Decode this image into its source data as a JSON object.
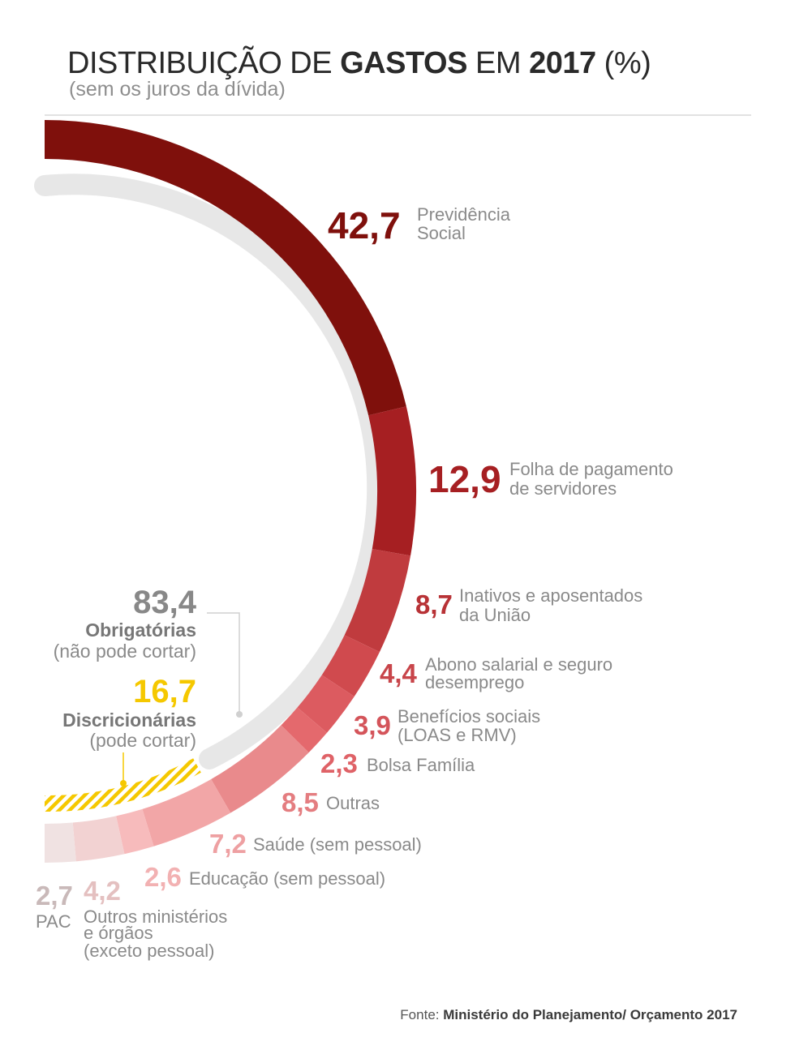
{
  "title": {
    "part1": "DISTRIBUIÇÃO DE ",
    "part2": "GASTOS",
    "part3": " EM ",
    "part4": "2017",
    "part5": " (%)",
    "subtitle": "(sem os juros da dívida)"
  },
  "chart_data": {
    "type": "pie",
    "series": [
      {
        "label": "Previdência Social",
        "value": 42.7,
        "value_text": "42,7",
        "color": "#7f100c"
      },
      {
        "label": "Folha de pagamento de servidores",
        "value": 12.9,
        "value_text": "12,9",
        "color": "#a61f22"
      },
      {
        "label": "Inativos e aposentados da União",
        "value": 8.7,
        "value_text": "8,7",
        "color": "#c03b3e"
      },
      {
        "label": "Abono salarial e seguro desemprego",
        "value": 4.4,
        "value_text": "4,4",
        "color": "#d04a4e"
      },
      {
        "label": "Benefícios sociais (LOAS e RMV)",
        "value": 3.9,
        "value_text": "3,9",
        "color": "#dc5b60"
      },
      {
        "label": "Bolsa Família",
        "value": 2.3,
        "value_text": "2,3",
        "color": "#e4696d"
      },
      {
        "label": "Outras",
        "value": 8.5,
        "value_text": "8,5",
        "color": "#e98a8c"
      },
      {
        "label": "Saúde (sem pessoal)",
        "value": 7.2,
        "value_text": "7,2",
        "color": "#f2a6a7"
      },
      {
        "label": "Educação (sem pessoal)",
        "value": 2.6,
        "value_text": "2,6",
        "color": "#f7bbbc"
      },
      {
        "label": "Outros ministérios e órgãos (exceto pessoal)",
        "value": 4.2,
        "value_text": "4,2",
        "color": "#f2d2d2"
      },
      {
        "label": "PAC",
        "value": 2.7,
        "value_text": "2,7",
        "color": "#f0e2e2"
      }
    ],
    "groups": [
      {
        "name": "Obrigatórias",
        "note": "(não pode cortar)",
        "value": 83.4,
        "value_text": "83,4",
        "color": "#888888"
      },
      {
        "name": "Discricionárias",
        "note": "(pode cortar)",
        "value": 16.7,
        "value_text": "16,7",
        "color": "#f5c800"
      }
    ]
  },
  "labels": {
    "previdencia": [
      "Previdência",
      "Social"
    ],
    "folha": [
      "Folha de pagamento",
      "de servidores"
    ],
    "inativos": [
      "Inativos e aposentados",
      "da União"
    ],
    "abono": [
      "Abono salarial e seguro",
      "desemprego"
    ],
    "beneficios": [
      "Benefícios sociais",
      "(LOAS e RMV)"
    ],
    "bolsa": "Bolsa Família",
    "outras": "Outras",
    "saude": "Saúde (sem pessoal)",
    "educacao": "Educação (sem pessoal)",
    "outros_min": [
      "Outros ministérios",
      "e órgãos",
      "(exceto pessoal)"
    ],
    "pac": "PAC"
  },
  "source": {
    "prefix": "Fonte: ",
    "text": "Ministério do Planejamento/ Orçamento 2017"
  }
}
